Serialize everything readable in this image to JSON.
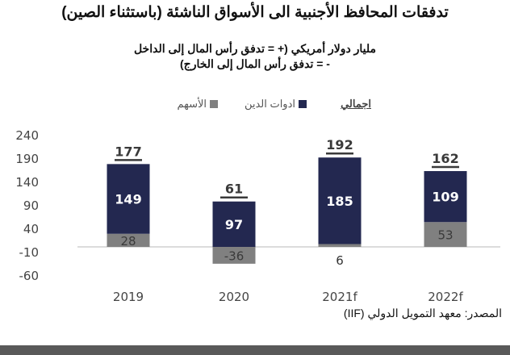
{
  "chart_data": {
    "type": "bar",
    "stacked": true,
    "title": "تدفقات المحافظ الأجنبية الى الأسواق الناشئة (باستثناء الصين)",
    "subtitle_line1": "مليار دولار أمريكي (+ = تدفق رأس المال إلى الداخل",
    "subtitle_line2": "- = تدفق رأس المال إلى الخارج)",
    "categories": [
      "2019",
      "2020",
      "2021f",
      "2022f"
    ],
    "series": [
      {
        "name": "الأسهم",
        "color": "#808080",
        "values": [
          28,
          -36,
          6,
          53
        ]
      },
      {
        "name": "ادوات الدين",
        "color": "#232850",
        "values": [
          149,
          97,
          185,
          109
        ]
      }
    ],
    "totals_label": "اجمالي",
    "totals": [
      177,
      61,
      192,
      162
    ],
    "yticks": [
      240,
      190,
      140,
      90,
      40,
      -10,
      -60
    ],
    "ylim": [
      -60,
      240
    ],
    "grid": false,
    "legend_position": "top",
    "source": "المصدر: معهد التمويل الدولي (IIF)"
  }
}
